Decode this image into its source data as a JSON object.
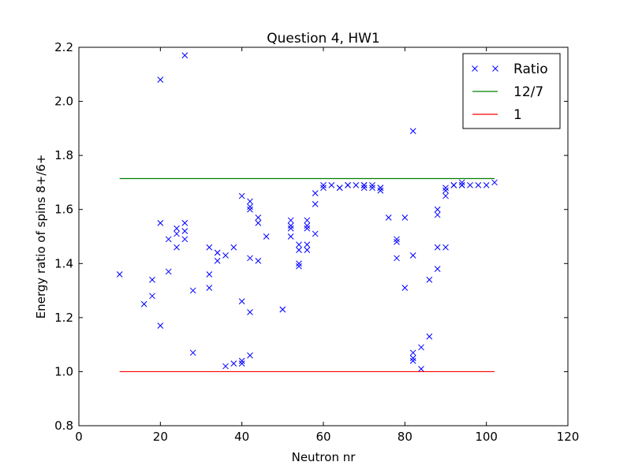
{
  "chart_data": {
    "type": "scatter",
    "title": "Question 4, HW1",
    "xlabel": "Neutron nr",
    "ylabel": "Energy ratio of spins 8+/6+",
    "xlim": [
      0,
      120
    ],
    "ylim": [
      0.8,
      2.2
    ],
    "xticks": [
      0,
      20,
      40,
      60,
      80,
      100,
      120
    ],
    "xtick_labels": [
      "0",
      "20",
      "40",
      "60",
      "80",
      "100",
      "120"
    ],
    "yticks": [
      0.8,
      1.0,
      1.2,
      1.4,
      1.6,
      1.8,
      2.0,
      2.2
    ],
    "ytick_labels": [
      "0.8",
      "1.0",
      "1.2",
      "1.4",
      "1.6",
      "1.8",
      "2.0",
      "2.2"
    ],
    "grid": false,
    "legend_position": "top-right",
    "series": [
      {
        "name": "Ratio",
        "marker": "x",
        "color": "#0000ff",
        "points": [
          [
            10,
            1.36
          ],
          [
            16,
            1.25
          ],
          [
            18,
            1.34
          ],
          [
            18,
            1.28
          ],
          [
            20,
            2.08
          ],
          [
            20,
            1.55
          ],
          [
            20,
            1.17
          ],
          [
            22,
            1.49
          ],
          [
            22,
            1.37
          ],
          [
            24,
            1.53
          ],
          [
            24,
            1.51
          ],
          [
            24,
            1.46
          ],
          [
            26,
            2.17
          ],
          [
            26,
            1.55
          ],
          [
            26,
            1.52
          ],
          [
            26,
            1.49
          ],
          [
            28,
            1.3
          ],
          [
            28,
            1.07
          ],
          [
            32,
            1.46
          ],
          [
            32,
            1.36
          ],
          [
            32,
            1.31
          ],
          [
            34,
            1.44
          ],
          [
            34,
            1.44
          ],
          [
            34,
            1.41
          ],
          [
            36,
            1.43
          ],
          [
            36,
            1.02
          ],
          [
            38,
            1.46
          ],
          [
            38,
            1.03
          ],
          [
            40,
            1.65
          ],
          [
            40,
            1.26
          ],
          [
            40,
            1.04
          ],
          [
            40,
            1.03
          ],
          [
            42,
            1.63
          ],
          [
            42,
            1.61
          ],
          [
            42,
            1.6
          ],
          [
            42,
            1.42
          ],
          [
            42,
            1.22
          ],
          [
            42,
            1.06
          ],
          [
            44,
            1.57
          ],
          [
            44,
            1.55
          ],
          [
            44,
            1.41
          ],
          [
            46,
            1.5
          ],
          [
            50,
            1.23
          ],
          [
            50,
            1.23
          ],
          [
            52,
            1.56
          ],
          [
            52,
            1.54
          ],
          [
            52,
            1.53
          ],
          [
            52,
            1.5
          ],
          [
            54,
            1.47
          ],
          [
            54,
            1.45
          ],
          [
            54,
            1.4
          ],
          [
            54,
            1.39
          ],
          [
            56,
            1.56
          ],
          [
            56,
            1.54
          ],
          [
            56,
            1.53
          ],
          [
            56,
            1.47
          ],
          [
            56,
            1.45
          ],
          [
            58,
            1.66
          ],
          [
            58,
            1.62
          ],
          [
            58,
            1.51
          ],
          [
            60,
            1.69
          ],
          [
            60,
            1.68
          ],
          [
            62,
            1.69
          ],
          [
            64,
            1.68
          ],
          [
            64,
            1.68
          ],
          [
            66,
            1.69
          ],
          [
            66,
            1.69
          ],
          [
            68,
            1.69
          ],
          [
            70,
            1.69
          ],
          [
            70,
            1.69
          ],
          [
            70,
            1.68
          ],
          [
            72,
            1.69
          ],
          [
            72,
            1.68
          ],
          [
            74,
            1.68
          ],
          [
            74,
            1.68
          ],
          [
            74,
            1.67
          ],
          [
            76,
            1.57
          ],
          [
            78,
            1.49
          ],
          [
            78,
            1.48
          ],
          [
            78,
            1.42
          ],
          [
            80,
            1.57
          ],
          [
            80,
            1.31
          ],
          [
            82,
            1.89
          ],
          [
            82,
            1.43
          ],
          [
            82,
            1.07
          ],
          [
            82,
            1.05
          ],
          [
            82,
            1.04
          ],
          [
            84,
            1.09
          ],
          [
            84,
            1.01
          ],
          [
            86,
            1.34
          ],
          [
            86,
            1.13
          ],
          [
            88,
            1.6
          ],
          [
            88,
            1.58
          ],
          [
            88,
            1.46
          ],
          [
            88,
            1.38
          ],
          [
            90,
            1.68
          ],
          [
            90,
            1.67
          ],
          [
            90,
            1.65
          ],
          [
            90,
            1.46
          ],
          [
            92,
            1.69
          ],
          [
            92,
            1.69
          ],
          [
            94,
            1.7
          ],
          [
            94,
            1.69
          ],
          [
            94,
            1.69
          ],
          [
            96,
            1.69
          ],
          [
            98,
            1.69
          ],
          [
            100,
            1.69
          ],
          [
            102,
            1.7
          ]
        ]
      },
      {
        "name": "12/7",
        "marker": "line",
        "color": "#008000",
        "x": [
          10,
          102
        ],
        "y": [
          1.7142857,
          1.7142857
        ]
      },
      {
        "name": "1",
        "marker": "line",
        "color": "#ff0000",
        "x": [
          10,
          102
        ],
        "y": [
          1.0,
          1.0
        ]
      }
    ]
  }
}
